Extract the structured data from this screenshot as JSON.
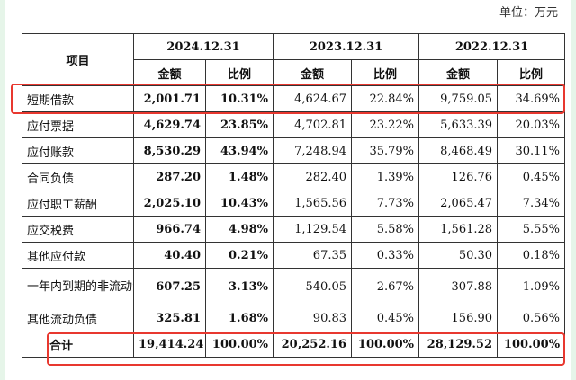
{
  "unit_label": "单位：万元",
  "header": {
    "item": "项目",
    "years": [
      "2024.12.31",
      "2023.12.31",
      "2022.12.31"
    ],
    "amount": "金额",
    "amount_alt": "金额",
    "ratio": "比例"
  },
  "rows": [
    {
      "item": "短期借款",
      "v": [
        "2,001.71",
        "10.31%",
        "4,624.67",
        "22.84%",
        "9,759.05",
        "34.69%"
      ]
    },
    {
      "item": "应付票据",
      "v": [
        "4,629.74",
        "23.85%",
        "4,702.81",
        "23.22%",
        "5,633.39",
        "20.03%"
      ]
    },
    {
      "item": "应付账款",
      "v": [
        "8,530.29",
        "43.94%",
        "7,248.94",
        "35.79%",
        "8,468.49",
        "30.11%"
      ]
    },
    {
      "item": "合同负债",
      "v": [
        "287.20",
        "1.48%",
        "282.40",
        "1.39%",
        "126.76",
        "0.45%"
      ]
    },
    {
      "item": "应付职工薪酬",
      "v": [
        "2,025.10",
        "10.43%",
        "1,565.56",
        "7.73%",
        "2,065.47",
        "7.34%"
      ]
    },
    {
      "item": "应交税费",
      "v": [
        "966.74",
        "4.98%",
        "1,129.54",
        "5.58%",
        "1,561.28",
        "5.55%"
      ]
    },
    {
      "item": "其他应付款",
      "v": [
        "40.40",
        "0.21%",
        "67.35",
        "0.33%",
        "50.30",
        "0.18%"
      ]
    },
    {
      "item": "一年内到期的非流动负债",
      "v": [
        "607.25",
        "3.13%",
        "540.05",
        "2.67%",
        "307.88",
        "1.09%"
      ]
    },
    {
      "item": "其他流动负债",
      "v": [
        "325.81",
        "1.68%",
        "90.83",
        "0.45%",
        "156.90",
        "0.56%"
      ]
    }
  ],
  "total": {
    "item": "合计",
    "v": [
      "19,414.24",
      "100.00%",
      "20,252.16",
      "100.00%",
      "28,129.52",
      "100.00%"
    ]
  },
  "highlight_color": "#e8382f",
  "background_color": "#e6f5e9"
}
